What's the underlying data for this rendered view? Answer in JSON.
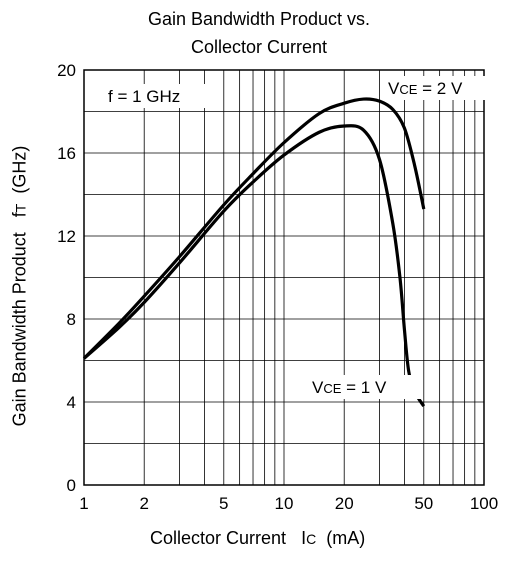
{
  "chart_data": {
    "type": "line",
    "title_line1": "Gain Bandwidth Product vs.",
    "title_line2": "Collector Current",
    "xlabel": "Collector Current",
    "xlabel_symbol": "I",
    "xlabel_symbol_sub": "C",
    "xlabel_unit": "(mA)",
    "ylabel": "Gain Bandwidth Product",
    "ylabel_symbol": "f",
    "ylabel_symbol_sub": "T",
    "ylabel_unit": "(GHz)",
    "x_scale": "log",
    "xlim": [
      1,
      100
    ],
    "ylim": [
      0,
      20
    ],
    "x_ticks": [
      1,
      2,
      5,
      10,
      20,
      50,
      100
    ],
    "y_ticks": [
      0,
      4,
      8,
      12,
      16,
      20
    ],
    "grid": true,
    "annotation": "f = 1 GHz",
    "series": [
      {
        "name": "VCE = 2 V",
        "label_prefix": "V",
        "label_sub": "CE",
        "label_value": " = 2 V",
        "x": [
          1,
          1.5,
          2,
          3,
          5,
          7,
          10,
          15,
          20,
          25,
          30,
          35,
          40,
          45,
          50
        ],
        "y": [
          6.1,
          7.8,
          9.1,
          11.0,
          13.5,
          15.0,
          16.5,
          17.9,
          18.4,
          18.6,
          18.5,
          18.1,
          17.2,
          15.4,
          13.3
        ]
      },
      {
        "name": "VCE = 1 V",
        "label_prefix": "V",
        "label_sub": "CE",
        "label_value": " = 1 V",
        "x": [
          1,
          1.5,
          2,
          3,
          5,
          7,
          10,
          15,
          20,
          25,
          30,
          35,
          38,
          40,
          42,
          45,
          50
        ],
        "y": [
          6.1,
          7.6,
          8.8,
          10.7,
          13.2,
          14.6,
          15.9,
          17.0,
          17.3,
          17.1,
          15.7,
          12.6,
          10.0,
          7.5,
          5.5,
          4.5,
          3.8
        ]
      }
    ]
  }
}
